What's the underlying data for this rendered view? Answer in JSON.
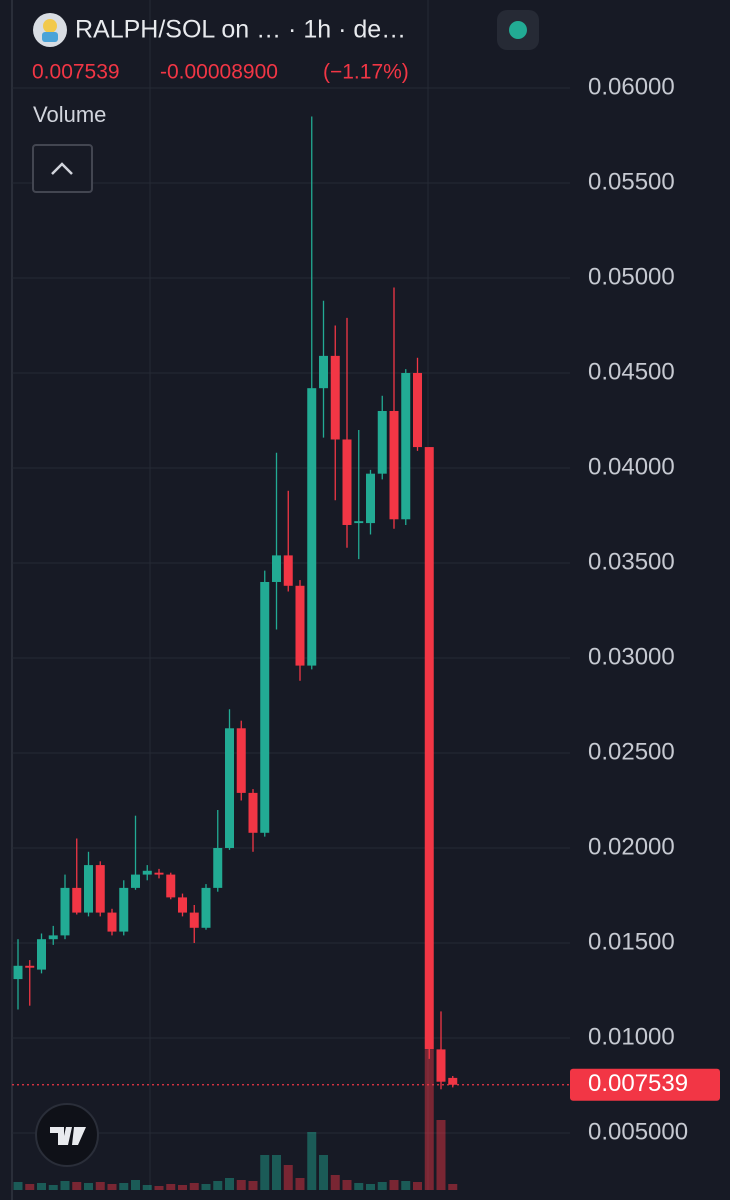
{
  "header": {
    "title": "RALPH/SOL on … · 1h · de…",
    "change": "-0.00008900",
    "change_percent": "(−1.17%)",
    "volume_label": "Volume"
  },
  "chart_data": {
    "type": "candlestick",
    "up_color": "#22ab94",
    "down_color": "#f23645",
    "ylim": [
      0.002,
      0.06463
    ],
    "yticks": [
      {
        "value": 0.06,
        "label": "0.06000"
      },
      {
        "value": 0.055,
        "label": "0.05500"
      },
      {
        "value": 0.05,
        "label": "0.05000"
      },
      {
        "value": 0.045,
        "label": "0.04500"
      },
      {
        "value": 0.04,
        "label": "0.04000"
      },
      {
        "value": 0.035,
        "label": "0.03500"
      },
      {
        "value": 0.03,
        "label": "0.03000"
      },
      {
        "value": 0.025,
        "label": "0.02500"
      },
      {
        "value": 0.02,
        "label": "0.02000"
      },
      {
        "value": 0.015,
        "label": "0.01500"
      },
      {
        "value": 0.01,
        "label": "0.01000"
      },
      {
        "value": 0.005,
        "label": "0.005000"
      }
    ],
    "grid": true,
    "candles": [
      {
        "open": 0.0131,
        "high": 0.0152,
        "low": 0.0115,
        "close": 0.0138,
        "volume": 8
      },
      {
        "open": 0.0138,
        "high": 0.0141,
        "low": 0.0117,
        "close": 0.0137,
        "volume": 6
      },
      {
        "open": 0.0136,
        "high": 0.0155,
        "low": 0.0134,
        "close": 0.0152,
        "volume": 7
      },
      {
        "open": 0.0152,
        "high": 0.0159,
        "low": 0.0149,
        "close": 0.0154,
        "volume": 5
      },
      {
        "open": 0.0154,
        "high": 0.0186,
        "low": 0.0152,
        "close": 0.0179,
        "volume": 9
      },
      {
        "open": 0.0179,
        "high": 0.0205,
        "low": 0.0165,
        "close": 0.0166,
        "volume": 8
      },
      {
        "open": 0.0166,
        "high": 0.0198,
        "low": 0.0164,
        "close": 0.0191,
        "volume": 7
      },
      {
        "open": 0.0191,
        "high": 0.0193,
        "low": 0.0164,
        "close": 0.0166,
        "volume": 8
      },
      {
        "open": 0.0166,
        "high": 0.0168,
        "low": 0.0154,
        "close": 0.0156,
        "volume": 6
      },
      {
        "open": 0.0156,
        "high": 0.0183,
        "low": 0.0154,
        "close": 0.0179,
        "volume": 7
      },
      {
        "open": 0.0179,
        "high": 0.0217,
        "low": 0.0178,
        "close": 0.0186,
        "volume": 10
      },
      {
        "open": 0.0186,
        "high": 0.0191,
        "low": 0.0183,
        "close": 0.0188,
        "volume": 5
      },
      {
        "open": 0.0187,
        "high": 0.0189,
        "low": 0.0184,
        "close": 0.0186,
        "volume": 4
      },
      {
        "open": 0.0186,
        "high": 0.0187,
        "low": 0.0173,
        "close": 0.0174,
        "volume": 6
      },
      {
        "open": 0.0174,
        "high": 0.0176,
        "low": 0.0164,
        "close": 0.0166,
        "volume": 5
      },
      {
        "open": 0.0166,
        "high": 0.017,
        "low": 0.015,
        "close": 0.0158,
        "volume": 7
      },
      {
        "open": 0.0158,
        "high": 0.0181,
        "low": 0.0157,
        "close": 0.0179,
        "volume": 6
      },
      {
        "open": 0.0179,
        "high": 0.022,
        "low": 0.0177,
        "close": 0.02,
        "volume": 9
      },
      {
        "open": 0.02,
        "high": 0.0273,
        "low": 0.0199,
        "close": 0.0263,
        "volume": 12
      },
      {
        "open": 0.0263,
        "high": 0.0267,
        "low": 0.0225,
        "close": 0.0229,
        "volume": 10
      },
      {
        "open": 0.0229,
        "high": 0.0231,
        "low": 0.0198,
        "close": 0.0208,
        "volume": 9
      },
      {
        "open": 0.0208,
        "high": 0.0346,
        "low": 0.0206,
        "close": 0.034,
        "volume": 35
      },
      {
        "open": 0.034,
        "high": 0.0408,
        "low": 0.0315,
        "close": 0.0354,
        "volume": 35
      },
      {
        "open": 0.0354,
        "high": 0.0388,
        "low": 0.0335,
        "close": 0.0338,
        "volume": 25
      },
      {
        "open": 0.0338,
        "high": 0.0341,
        "low": 0.0288,
        "close": 0.0296,
        "volume": 12
      },
      {
        "open": 0.0296,
        "high": 0.0585,
        "low": 0.0294,
        "close": 0.0442,
        "volume": 58
      },
      {
        "open": 0.0442,
        "high": 0.0488,
        "low": 0.0416,
        "close": 0.0459,
        "volume": 35
      },
      {
        "open": 0.0459,
        "high": 0.0475,
        "low": 0.0383,
        "close": 0.0415,
        "volume": 15
      },
      {
        "open": 0.0415,
        "high": 0.0479,
        "low": 0.0358,
        "close": 0.037,
        "volume": 10
      },
      {
        "open": 0.0371,
        "high": 0.042,
        "low": 0.0352,
        "close": 0.0372,
        "volume": 7
      },
      {
        "open": 0.0371,
        "high": 0.0399,
        "low": 0.0365,
        "close": 0.0397,
        "volume": 6
      },
      {
        "open": 0.0397,
        "high": 0.0438,
        "low": 0.0394,
        "close": 0.043,
        "volume": 8
      },
      {
        "open": 0.043,
        "high": 0.0495,
        "low": 0.0368,
        "close": 0.0373,
        "volume": 10
      },
      {
        "open": 0.0373,
        "high": 0.0452,
        "low": 0.037,
        "close": 0.045,
        "volume": 9
      },
      {
        "open": 0.045,
        "high": 0.0458,
        "low": 0.0409,
        "close": 0.0411,
        "volume": 8
      },
      {
        "open": 0.0411,
        "high": 0.0411,
        "low": 0.0089,
        "close": 0.0094,
        "volume": 140
      },
      {
        "open": 0.0094,
        "high": 0.0114,
        "low": 0.0073,
        "close": 0.0077,
        "volume": 70
      },
      {
        "open": 0.0079,
        "high": 0.008,
        "low": 0.0074,
        "close": 0.007539,
        "volume": 6
      }
    ]
  }
}
